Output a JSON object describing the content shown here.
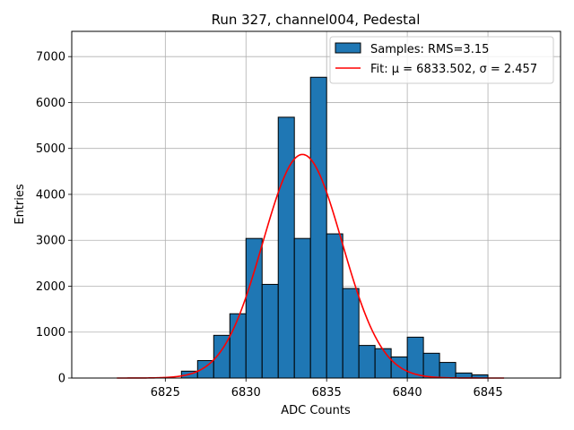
{
  "chart_data": {
    "type": "bar",
    "title": "Run 327, channel004, Pedestal",
    "xlabel": "ADC Counts",
    "ylabel": "Entries",
    "xlim": [
      6819.2,
      6849.5
    ],
    "ylim": [
      0,
      7550
    ],
    "grid": true,
    "legend_position": "top-right",
    "x_ticks": [
      6825,
      6830,
      6835,
      6840,
      6845
    ],
    "y_ticks": [
      0,
      1000,
      2000,
      3000,
      4000,
      5000,
      6000,
      7000
    ],
    "histogram": {
      "name": "Samples: RMS=3.15",
      "color": "#1f77b4",
      "edge_color": "#000000",
      "bin_edges": [
        6826.0,
        6827.0,
        6828.0,
        6829.0,
        6830.0,
        6831.0,
        6832.0,
        6833.0,
        6834.0,
        6835.0,
        6836.0,
        6837.0,
        6838.0,
        6839.0,
        6840.0,
        6841.0,
        6842.0,
        6843.0,
        6844.0,
        6845.0
      ],
      "counts": [
        150,
        380,
        930,
        1400,
        3040,
        2040,
        5680,
        3040,
        6550,
        3140,
        1950,
        710,
        640,
        460,
        890,
        540,
        340,
        110,
        70
      ]
    },
    "fit": {
      "name": "Fit: μ = 6833.502, σ = 2.457",
      "color": "#ff0000",
      "mu": 6833.502,
      "sigma": 2.457,
      "amplitude": 4870,
      "x_range": [
        6822.0,
        6846.0
      ]
    }
  }
}
